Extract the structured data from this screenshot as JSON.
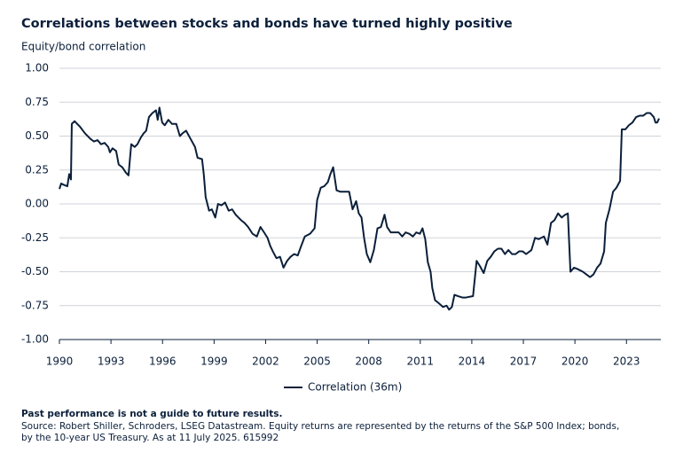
{
  "chart_data": {
    "type": "line",
    "title": "Correlations between stocks and bonds have turned highly positive",
    "y_label": "Equity/bond correlation",
    "x": [
      1990.0,
      1990.1,
      1990.26,
      1990.46,
      1990.57,
      1990.67,
      1990.72,
      1990.88,
      1991.19,
      1991.49,
      1991.8,
      1992.01,
      1992.22,
      1992.42,
      1992.63,
      1992.84,
      1992.94,
      1993.09,
      1993.3,
      1993.45,
      1993.66,
      1993.87,
      1994.02,
      1994.18,
      1994.38,
      1994.54,
      1994.74,
      1994.9,
      1995.05,
      1995.21,
      1995.41,
      1995.62,
      1995.72,
      1995.82,
      1995.98,
      1996.13,
      1996.34,
      1996.55,
      1996.8,
      1997.01,
      1997.16,
      1997.37,
      1997.63,
      1997.89,
      1998.04,
      1998.3,
      1998.4,
      1998.51,
      1998.71,
      1998.87,
      1999.07,
      1999.23,
      1999.43,
      1999.64,
      1999.85,
      2000.05,
      2000.26,
      2000.57,
      2000.77,
      2000.98,
      2001.24,
      2001.49,
      2001.7,
      2001.91,
      2002.11,
      2002.27,
      2002.42,
      2002.63,
      2002.84,
      2003.04,
      2003.25,
      2003.45,
      2003.66,
      2003.87,
      2004.07,
      2004.28,
      2004.59,
      2004.85,
      2005.0,
      2005.21,
      2005.41,
      2005.62,
      2005.77,
      2005.93,
      2006.13,
      2006.34,
      2006.65,
      2006.86,
      2007.06,
      2007.27,
      2007.42,
      2007.58,
      2007.73,
      2007.89,
      2008.09,
      2008.3,
      2008.51,
      2008.71,
      2008.92,
      2009.07,
      2009.28,
      2009.54,
      2009.74,
      2009.95,
      2010.15,
      2010.36,
      2010.57,
      2010.77,
      2010.98,
      2011.13,
      2011.29,
      2011.44,
      2011.6,
      2011.7,
      2011.86,
      2012.06,
      2012.32,
      2012.53,
      2012.68,
      2012.84,
      2012.99,
      2013.2,
      2013.45,
      2013.66,
      2014.07,
      2014.28,
      2014.48,
      2014.69,
      2014.9,
      2015.1,
      2015.31,
      2015.52,
      2015.72,
      2015.93,
      2016.13,
      2016.34,
      2016.55,
      2016.75,
      2016.96,
      2017.16,
      2017.47,
      2017.68,
      2017.89,
      2018.2,
      2018.4,
      2018.61,
      2018.81,
      2019.02,
      2019.23,
      2019.43,
      2019.59,
      2019.74,
      2019.95,
      2020.15,
      2020.46,
      2020.67,
      2020.88,
      2021.08,
      2021.29,
      2021.49,
      2021.7,
      2021.8,
      2022.01,
      2022.22,
      2022.42,
      2022.63,
      2022.73,
      2022.94,
      2023.14,
      2023.35,
      2023.56,
      2023.76,
      2023.97,
      2024.18,
      2024.38,
      2024.59,
      2024.69,
      2024.79,
      2024.9
    ],
    "series": [
      {
        "name": "Correlation (36m)",
        "color": "#0b1f3a",
        "values": [
          0.11,
          0.15,
          0.14,
          0.13,
          0.22,
          0.18,
          0.59,
          0.61,
          0.57,
          0.52,
          0.48,
          0.46,
          0.47,
          0.44,
          0.45,
          0.42,
          0.38,
          0.41,
          0.39,
          0.29,
          0.27,
          0.23,
          0.21,
          0.44,
          0.42,
          0.44,
          0.49,
          0.52,
          0.54,
          0.64,
          0.67,
          0.69,
          0.62,
          0.71,
          0.6,
          0.58,
          0.62,
          0.59,
          0.59,
          0.5,
          0.52,
          0.54,
          0.48,
          0.42,
          0.34,
          0.33,
          0.22,
          0.05,
          -0.05,
          -0.04,
          -0.1,
          0.0,
          -0.01,
          0.01,
          -0.05,
          -0.04,
          -0.08,
          -0.12,
          -0.14,
          -0.17,
          -0.22,
          -0.24,
          -0.17,
          -0.21,
          -0.25,
          -0.31,
          -0.35,
          -0.4,
          -0.39,
          -0.47,
          -0.42,
          -0.39,
          -0.37,
          -0.38,
          -0.31,
          -0.24,
          -0.22,
          -0.18,
          0.03,
          0.12,
          0.13,
          0.16,
          0.22,
          0.27,
          0.1,
          0.09,
          0.09,
          0.09,
          -0.04,
          0.02,
          -0.07,
          -0.1,
          -0.25,
          -0.37,
          -0.43,
          -0.34,
          -0.18,
          -0.17,
          -0.08,
          -0.17,
          -0.21,
          -0.21,
          -0.21,
          -0.24,
          -0.21,
          -0.22,
          -0.24,
          -0.21,
          -0.22,
          -0.18,
          -0.26,
          -0.43,
          -0.5,
          -0.62,
          -0.71,
          -0.73,
          -0.76,
          -0.75,
          -0.78,
          -0.76,
          -0.67,
          -0.68,
          -0.69,
          -0.69,
          -0.68,
          -0.42,
          -0.46,
          -0.51,
          -0.42,
          -0.39,
          -0.35,
          -0.33,
          -0.33,
          -0.37,
          -0.34,
          -0.37,
          -0.37,
          -0.35,
          -0.35,
          -0.37,
          -0.34,
          -0.25,
          -0.26,
          -0.24,
          -0.3,
          -0.14,
          -0.12,
          -0.07,
          -0.1,
          -0.08,
          -0.07,
          -0.5,
          -0.47,
          -0.48,
          -0.5,
          -0.52,
          -0.54,
          -0.52,
          -0.47,
          -0.44,
          -0.35,
          -0.14,
          -0.04,
          0.09,
          0.12,
          0.17,
          0.55,
          0.55,
          0.58,
          0.6,
          0.64,
          0.65,
          0.65,
          0.67,
          0.67,
          0.64,
          0.6,
          0.6,
          0.63
        ]
      }
    ],
    "xlim": [
      1990,
      2025
    ],
    "xticks": [
      1990,
      1993,
      1996,
      1999,
      2002,
      2005,
      2008,
      2011,
      2014,
      2017,
      2020,
      2023
    ],
    "ylim": [
      -1,
      1
    ],
    "yticks": [
      {
        "value": 1,
        "label": "1.00"
      },
      {
        "value": 0.75,
        "label": "0.75"
      },
      {
        "value": 0.5,
        "label": "0.50"
      },
      {
        "value": 0.25,
        "label": "0.25"
      },
      {
        "value": 0,
        "label": "0.00"
      },
      {
        "value": -0.25,
        "label": "-0.25"
      },
      {
        "value": -0.5,
        "label": "-0.50"
      },
      {
        "value": -0.75,
        "label": "-0.75"
      },
      {
        "value": -1,
        "label": "-1.00"
      }
    ],
    "grid": true,
    "legend": "bottom",
    "footnote": "Past performance is not a guide to future results.",
    "source": [
      "Source: Robert Shiller, Schroders, LSEG Datastream. Equity returns are represented by the returns of the S&P 500 Index; bonds,",
      "by the 10-year US Treasury. As at 11 July 2025. 615992"
    ]
  }
}
